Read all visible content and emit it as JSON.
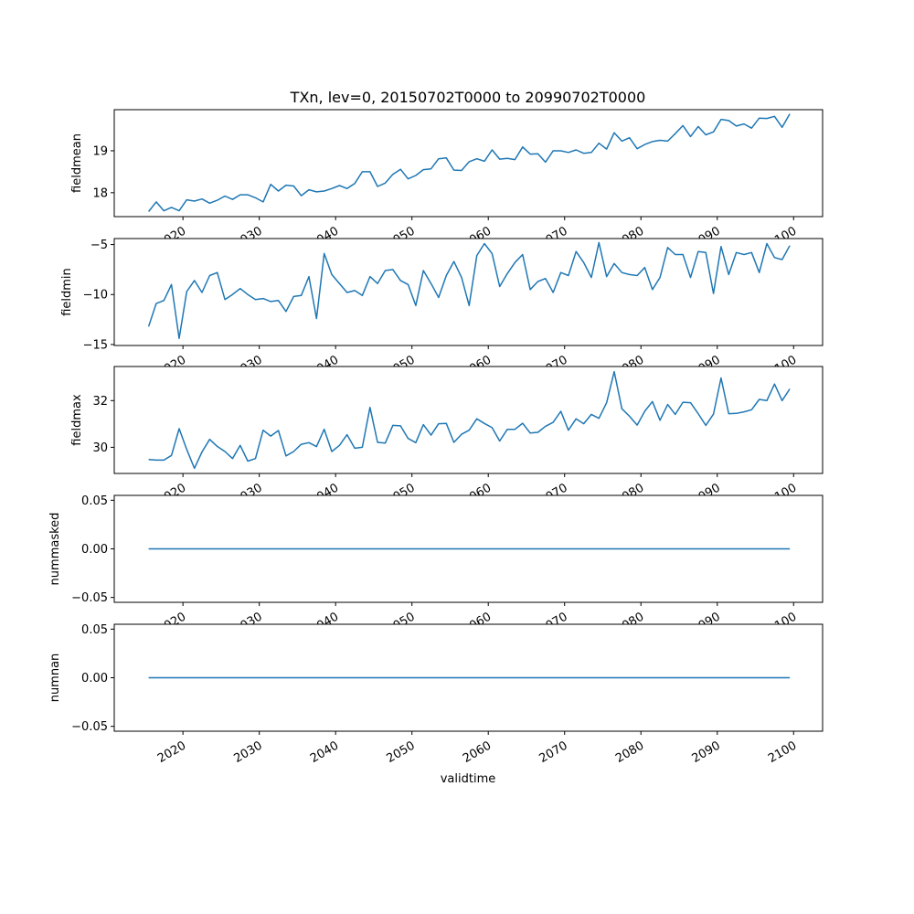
{
  "chart_data": {
    "type": "line",
    "title": "TXn, lev=0, 20150702T0000 to 20990702T0000",
    "xlabel": "validtime",
    "line_color": "#1f77b4",
    "xlim": [
      2011.0,
      2103.8
    ],
    "x_ticks": [
      2020,
      2030,
      2040,
      2050,
      2060,
      2070,
      2080,
      2090,
      2100
    ],
    "x_tick_labels": [
      "2020",
      "2030",
      "2040",
      "2050",
      "2060",
      "2070",
      "2080",
      "2090",
      "2100"
    ],
    "x": [
      2015,
      2016,
      2017,
      2018,
      2019,
      2020,
      2021,
      2022,
      2023,
      2024,
      2025,
      2026,
      2027,
      2028,
      2029,
      2030,
      2031,
      2032,
      2033,
      2034,
      2035,
      2036,
      2037,
      2038,
      2039,
      2040,
      2041,
      2042,
      2043,
      2044,
      2045,
      2046,
      2047,
      2048,
      2049,
      2050,
      2051,
      2052,
      2053,
      2054,
      2055,
      2056,
      2057,
      2058,
      2059,
      2060,
      2061,
      2062,
      2063,
      2064,
      2065,
      2066,
      2067,
      2068,
      2069,
      2070,
      2071,
      2072,
      2073,
      2074,
      2075,
      2076,
      2077,
      2078,
      2079,
      2080,
      2081,
      2082,
      2083,
      2084,
      2085,
      2086,
      2087,
      2088,
      2089,
      2090,
      2091,
      2092,
      2093,
      2094,
      2095,
      2096,
      2097,
      2098,
      2099
    ],
    "panels": [
      {
        "ylabel": "fieldmean",
        "ylim": [
          17.43,
          19.98
        ],
        "y_ticks": [
          18,
          19
        ],
        "y_tick_labels": [
          "18",
          "19"
        ],
        "values": [
          17.55,
          17.78,
          17.57,
          17.65,
          17.57,
          17.83,
          17.8,
          17.85,
          17.75,
          17.82,
          17.92,
          17.84,
          17.95,
          17.95,
          17.88,
          17.78,
          18.2,
          18.04,
          18.18,
          18.16,
          17.93,
          18.07,
          18.02,
          18.04,
          18.1,
          18.17,
          18.1,
          18.22,
          18.5,
          18.5,
          18.15,
          18.23,
          18.44,
          18.56,
          18.33,
          18.41,
          18.55,
          18.57,
          18.81,
          18.83,
          18.54,
          18.53,
          18.74,
          18.81,
          18.75,
          19.02,
          18.8,
          18.82,
          18.79,
          19.09,
          18.92,
          18.93,
          18.73,
          19.0,
          19.0,
          18.96,
          19.02,
          18.94,
          18.96,
          19.18,
          19.04,
          19.43,
          19.23,
          19.31,
          19.05,
          19.15,
          19.22,
          19.25,
          19.23,
          19.41,
          19.6,
          19.34,
          19.58,
          19.38,
          19.45,
          19.75,
          19.72,
          19.59,
          19.64,
          19.54,
          19.78,
          19.77,
          19.82,
          19.56,
          19.88
        ]
      },
      {
        "ylabel": "fieldmin",
        "ylim": [
          -15.1,
          -4.4
        ],
        "y_ticks": [
          -15,
          -10,
          -5
        ],
        "y_tick_labels": [
          "−15",
          "−10",
          "−5"
        ],
        "values": [
          -13.2,
          -10.9,
          -10.6,
          -9.0,
          -14.4,
          -9.7,
          -8.6,
          -9.8,
          -8.1,
          -7.8,
          -10.5,
          -10.0,
          -9.4,
          -10.0,
          -10.5,
          -10.4,
          -10.7,
          -10.6,
          -11.7,
          -10.2,
          -10.1,
          -8.2,
          -12.4,
          -5.9,
          -8.0,
          -8.9,
          -9.8,
          -9.6,
          -10.1,
          -8.2,
          -8.9,
          -7.6,
          -7.5,
          -8.6,
          -9.0,
          -11.1,
          -7.6,
          -8.9,
          -10.3,
          -8.1,
          -6.7,
          -8.3,
          -11.1,
          -6.1,
          -4.9,
          -5.9,
          -9.2,
          -7.9,
          -6.8,
          -6.0,
          -9.5,
          -8.7,
          -8.4,
          -9.8,
          -7.8,
          -8.1,
          -5.7,
          -6.8,
          -8.3,
          -4.8,
          -8.2,
          -6.9,
          -7.8,
          -8.0,
          -8.1,
          -7.3,
          -9.5,
          -8.3,
          -5.3,
          -6.0,
          -6.0,
          -8.3,
          -5.7,
          -5.8,
          -9.9,
          -5.2,
          -8.0,
          -5.8,
          -6.0,
          -5.8,
          -7.8,
          -4.9,
          -6.3,
          -6.5,
          -5.1
        ]
      },
      {
        "ylabel": "fieldmax",
        "ylim": [
          28.88,
          33.46
        ],
        "y_ticks": [
          30,
          32
        ],
        "y_tick_labels": [
          "30",
          "32"
        ],
        "values": [
          29.48,
          29.45,
          29.45,
          29.65,
          30.8,
          29.91,
          29.1,
          29.8,
          30.34,
          30.04,
          29.82,
          29.52,
          30.08,
          29.41,
          29.52,
          30.73,
          30.48,
          30.72,
          29.63,
          29.82,
          30.13,
          30.2,
          30.03,
          30.77,
          29.82,
          30.08,
          30.54,
          29.96,
          30.0,
          31.71,
          30.21,
          30.18,
          30.94,
          30.92,
          30.38,
          30.2,
          30.97,
          30.52,
          31.01,
          31.02,
          30.21,
          30.56,
          30.73,
          31.22,
          31.02,
          30.84,
          30.27,
          30.77,
          30.77,
          31.03,
          30.61,
          30.64,
          30.9,
          31.07,
          31.54,
          30.73,
          31.22,
          31.01,
          31.41,
          31.24,
          31.91,
          33.24,
          31.65,
          31.33,
          30.95,
          31.54,
          31.96,
          31.16,
          31.83,
          31.41,
          31.93,
          31.91,
          31.44,
          30.94,
          31.42,
          32.97,
          31.44,
          31.45,
          31.52,
          31.61,
          32.05,
          32.0,
          32.71,
          32.0,
          32.5
        ]
      },
      {
        "ylabel": "nummasked",
        "ylim": [
          -0.055,
          0.055
        ],
        "y_ticks": [
          -0.05,
          0.0,
          0.05
        ],
        "y_tick_labels": [
          "−0.05",
          "0.00",
          "0.05"
        ],
        "values": [
          0,
          0,
          0,
          0,
          0,
          0,
          0,
          0,
          0,
          0,
          0,
          0,
          0,
          0,
          0,
          0,
          0,
          0,
          0,
          0,
          0,
          0,
          0,
          0,
          0,
          0,
          0,
          0,
          0,
          0,
          0,
          0,
          0,
          0,
          0,
          0,
          0,
          0,
          0,
          0,
          0,
          0,
          0,
          0,
          0,
          0,
          0,
          0,
          0,
          0,
          0,
          0,
          0,
          0,
          0,
          0,
          0,
          0,
          0,
          0,
          0,
          0,
          0,
          0,
          0,
          0,
          0,
          0,
          0,
          0,
          0,
          0,
          0,
          0,
          0,
          0,
          0,
          0,
          0,
          0,
          0,
          0,
          0,
          0,
          0
        ]
      },
      {
        "ylabel": "numnan",
        "ylim": [
          -0.055,
          0.055
        ],
        "y_ticks": [
          -0.05,
          0.0,
          0.05
        ],
        "y_tick_labels": [
          "−0.05",
          "0.00",
          "0.05"
        ],
        "values": [
          0,
          0,
          0,
          0,
          0,
          0,
          0,
          0,
          0,
          0,
          0,
          0,
          0,
          0,
          0,
          0,
          0,
          0,
          0,
          0,
          0,
          0,
          0,
          0,
          0,
          0,
          0,
          0,
          0,
          0,
          0,
          0,
          0,
          0,
          0,
          0,
          0,
          0,
          0,
          0,
          0,
          0,
          0,
          0,
          0,
          0,
          0,
          0,
          0,
          0,
          0,
          0,
          0,
          0,
          0,
          0,
          0,
          0,
          0,
          0,
          0,
          0,
          0,
          0,
          0,
          0,
          0,
          0,
          0,
          0,
          0,
          0,
          0,
          0,
          0,
          0,
          0,
          0,
          0,
          0,
          0,
          0,
          0,
          0,
          0
        ]
      }
    ]
  }
}
